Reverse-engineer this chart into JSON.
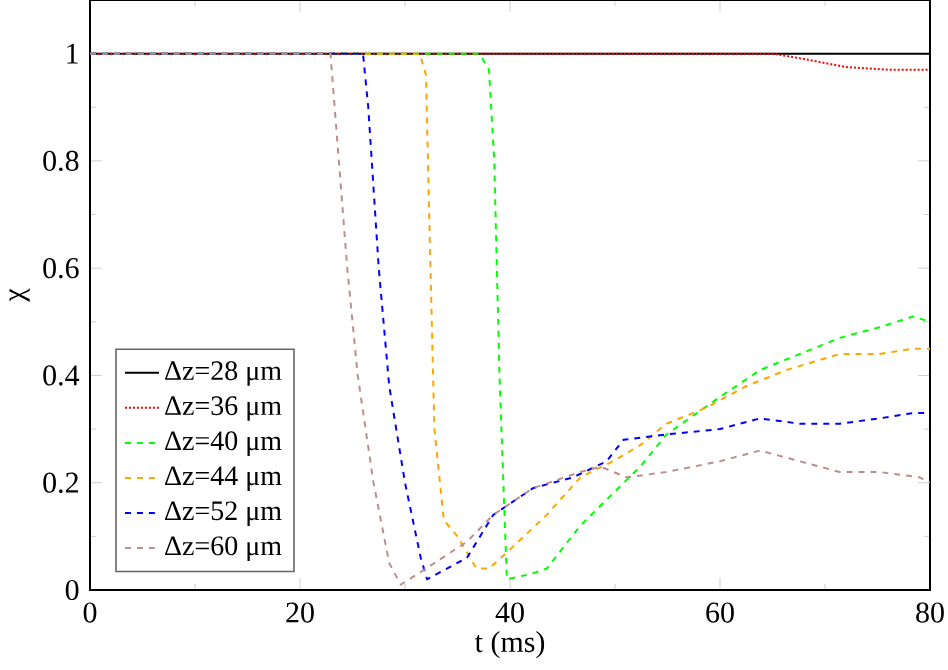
{
  "chart_data": {
    "type": "line",
    "xlabel": "t (ms)",
    "ylabel": "χ",
    "xlim": [
      0,
      80
    ],
    "ylim": [
      0,
      1.1
    ],
    "xticks": [
      0,
      20,
      40,
      60,
      80
    ],
    "yticks": [
      0,
      0.2,
      0.4,
      0.6,
      0.8,
      1
    ],
    "grid": false,
    "legend": "bottom left",
    "marker": "none",
    "series": [
      {
        "name": "Δz=28 μm",
        "color": "#000000",
        "line_style": "solid",
        "x": [
          0,
          80
        ],
        "values": [
          1,
          1
        ]
      },
      {
        "name": "Δz=36 μm",
        "color": "#ff0000",
        "line_style": "dotted",
        "x": [
          0,
          65,
          68,
          72,
          76,
          80
        ],
        "values": [
          1,
          1,
          0.99,
          0.975,
          0.97,
          0.97
        ]
      },
      {
        "name": "Δz=40 μm",
        "color": "#00ff00",
        "line_style": "dashed",
        "x": [
          0,
          37.1,
          38,
          38.5,
          39,
          39.7,
          42,
          43.5,
          46.7,
          49.8,
          52.4,
          54.9,
          60,
          63.8,
          67.6,
          71.4,
          75.2,
          78.4,
          80
        ],
        "values": [
          1,
          1,
          0.97,
          0.8,
          0.4,
          0.02,
          0.03,
          0.04,
          0.12,
          0.18,
          0.23,
          0.29,
          0.36,
          0.41,
          0.44,
          0.47,
          0.49,
          0.51,
          0.5
        ]
      },
      {
        "name": "Δz=44 μm",
        "color": "#ffa500",
        "line_style": "dashed",
        "x": [
          0,
          31.4,
          32,
          32.3,
          32.8,
          33.7,
          35,
          36.8,
          38,
          39.7,
          43.5,
          46.7,
          49.8,
          52.4,
          54.9,
          58.7,
          62.5,
          66.3,
          71.4,
          75.2,
          78.4,
          80
        ],
        "values": [
          1,
          1,
          0.96,
          0.7,
          0.3,
          0.13,
          0.1,
          0.04,
          0.04,
          0.07,
          0.14,
          0.21,
          0.24,
          0.27,
          0.31,
          0.34,
          0.38,
          0.41,
          0.44,
          0.44,
          0.45,
          0.45
        ]
      },
      {
        "name": "Δz=52 μm",
        "color": "#0000ff",
        "line_style": "dashed",
        "x": [
          0,
          26,
          26.5,
          27.5,
          28.5,
          30,
          31.5,
          32.1,
          35.9,
          38.4,
          42.2,
          46,
          49.2,
          50.8,
          54.9,
          60,
          63.8,
          67.6,
          71.4,
          75.2,
          78.4,
          80
        ],
        "values": [
          1,
          1,
          0.9,
          0.6,
          0.38,
          0.2,
          0.06,
          0.02,
          0.06,
          0.14,
          0.19,
          0.21,
          0.24,
          0.28,
          0.29,
          0.3,
          0.32,
          0.31,
          0.31,
          0.32,
          0.33,
          0.33
        ]
      },
      {
        "name": "Δz=60 μm",
        "color": "#bc8f8f",
        "line_style": "dashed",
        "x": [
          0,
          22.9,
          23.5,
          24.5,
          25.5,
          27,
          28.5,
          29.6,
          32,
          35.9,
          38.4,
          42.2,
          46.7,
          48.6,
          51.1,
          54.9,
          60,
          63.8,
          67.6,
          71.4,
          75.2,
          79,
          80
        ],
        "values": [
          1,
          1,
          0.85,
          0.6,
          0.4,
          0.2,
          0.05,
          0.01,
          0.04,
          0.09,
          0.14,
          0.19,
          0.22,
          0.23,
          0.21,
          0.22,
          0.24,
          0.26,
          0.24,
          0.22,
          0.22,
          0.21,
          0.2
        ]
      }
    ]
  }
}
